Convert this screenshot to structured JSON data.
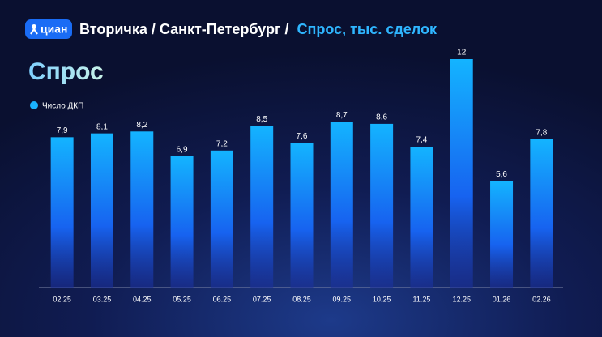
{
  "header": {
    "logo": "циан",
    "title": "Вторичка / Санкт-Петербург /",
    "title_highlight": "Спрос, тыс. сделок"
  },
  "chart_data": {
    "type": "bar",
    "title": "Спрос",
    "categories": [
      "02.25",
      "03.25",
      "04.25",
      "05.25",
      "06.25",
      "07.25",
      "08.25",
      "09.25",
      "10.25",
      "11.25",
      "12.25",
      "01.26",
      "02.26"
    ],
    "series": [
      {
        "name": "Число ДКП",
        "color": "#1ab2ff",
        "values": [
          7.9,
          8.1,
          8.2,
          6.9,
          7.2,
          8.5,
          7.6,
          8.7,
          8.6,
          7.4,
          12,
          5.6,
          7.8
        ],
        "value_labels": [
          "7,9",
          "8,1",
          "8,2",
          "6,9",
          "7,2",
          "8,5",
          "7,6",
          "8,7",
          "8.6",
          "7,4",
          "12",
          "5,6",
          "7,8"
        ]
      }
    ],
    "ylim": [
      0,
      12
    ]
  }
}
